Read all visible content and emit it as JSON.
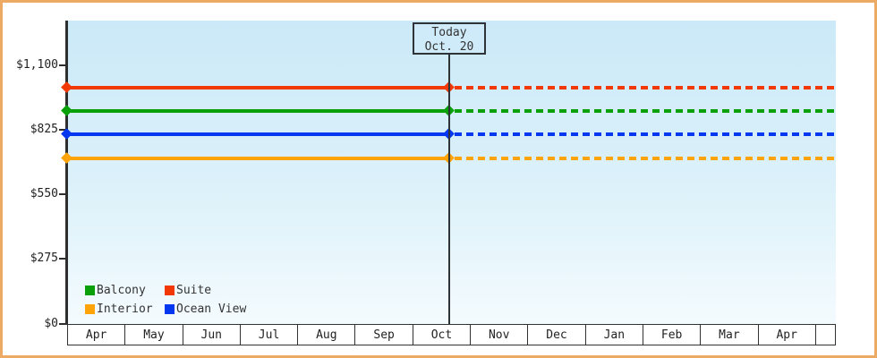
{
  "window": {
    "border_color": "#edaa63",
    "background": "#ffffff"
  },
  "colors": {
    "axis": "#2e2e2e",
    "text": "#333333",
    "plot_gradient_top": "#cbe9f8",
    "plot_gradient_bottom": "#f4fbfe",
    "suite": "#f23905",
    "balcony": "#0aa00a",
    "ocean_view": "#0337f0",
    "interior": "#ffa408"
  },
  "chart_data": {
    "type": "line",
    "title": "",
    "xlabel": "",
    "ylabel": "",
    "x_categories": [
      "Apr",
      "May",
      "Jun",
      "Jul",
      "Aug",
      "Sep",
      "Oct",
      "Nov",
      "Dec",
      "Jan",
      "Feb",
      "Mar",
      "Apr"
    ],
    "y_ticks": [
      {
        "label": "$0",
        "value": 0
      },
      {
        "label": "$275",
        "value": 275
      },
      {
        "label": "$550",
        "value": 550
      },
      {
        "label": "$825",
        "value": 825
      },
      {
        "label": "$1,100",
        "value": 1100
      }
    ],
    "ylim": [
      0,
      1290
    ],
    "grid": false,
    "series": [
      {
        "name": "Suite",
        "color": "#f23905",
        "price": 1005,
        "shape": "constant across all months; solid before today, dotted after"
      },
      {
        "name": "Balcony",
        "color": "#0aa00a",
        "price": 905,
        "shape": "constant across all months; solid before today, dotted after"
      },
      {
        "name": "Ocean View",
        "color": "#0337f0",
        "price": 805,
        "shape": "constant across all months; solid before today, dotted after"
      },
      {
        "name": "Interior",
        "color": "#ffa408",
        "price": 705,
        "shape": "constant across all months; solid before today, dotted after"
      }
    ],
    "today": {
      "title": "Today",
      "date": "Oct. 20",
      "month_index": 6,
      "day_fraction": 0.645
    },
    "legend": {
      "position": "bottom-left inside plot",
      "columns": 2,
      "items": [
        {
          "label": "Balcony",
          "color": "#0aa00a"
        },
        {
          "label": "Suite",
          "color": "#f23905"
        },
        {
          "label": "Interior",
          "color": "#ffa408"
        },
        {
          "label": "Ocean View",
          "color": "#0337f0"
        }
      ]
    }
  }
}
